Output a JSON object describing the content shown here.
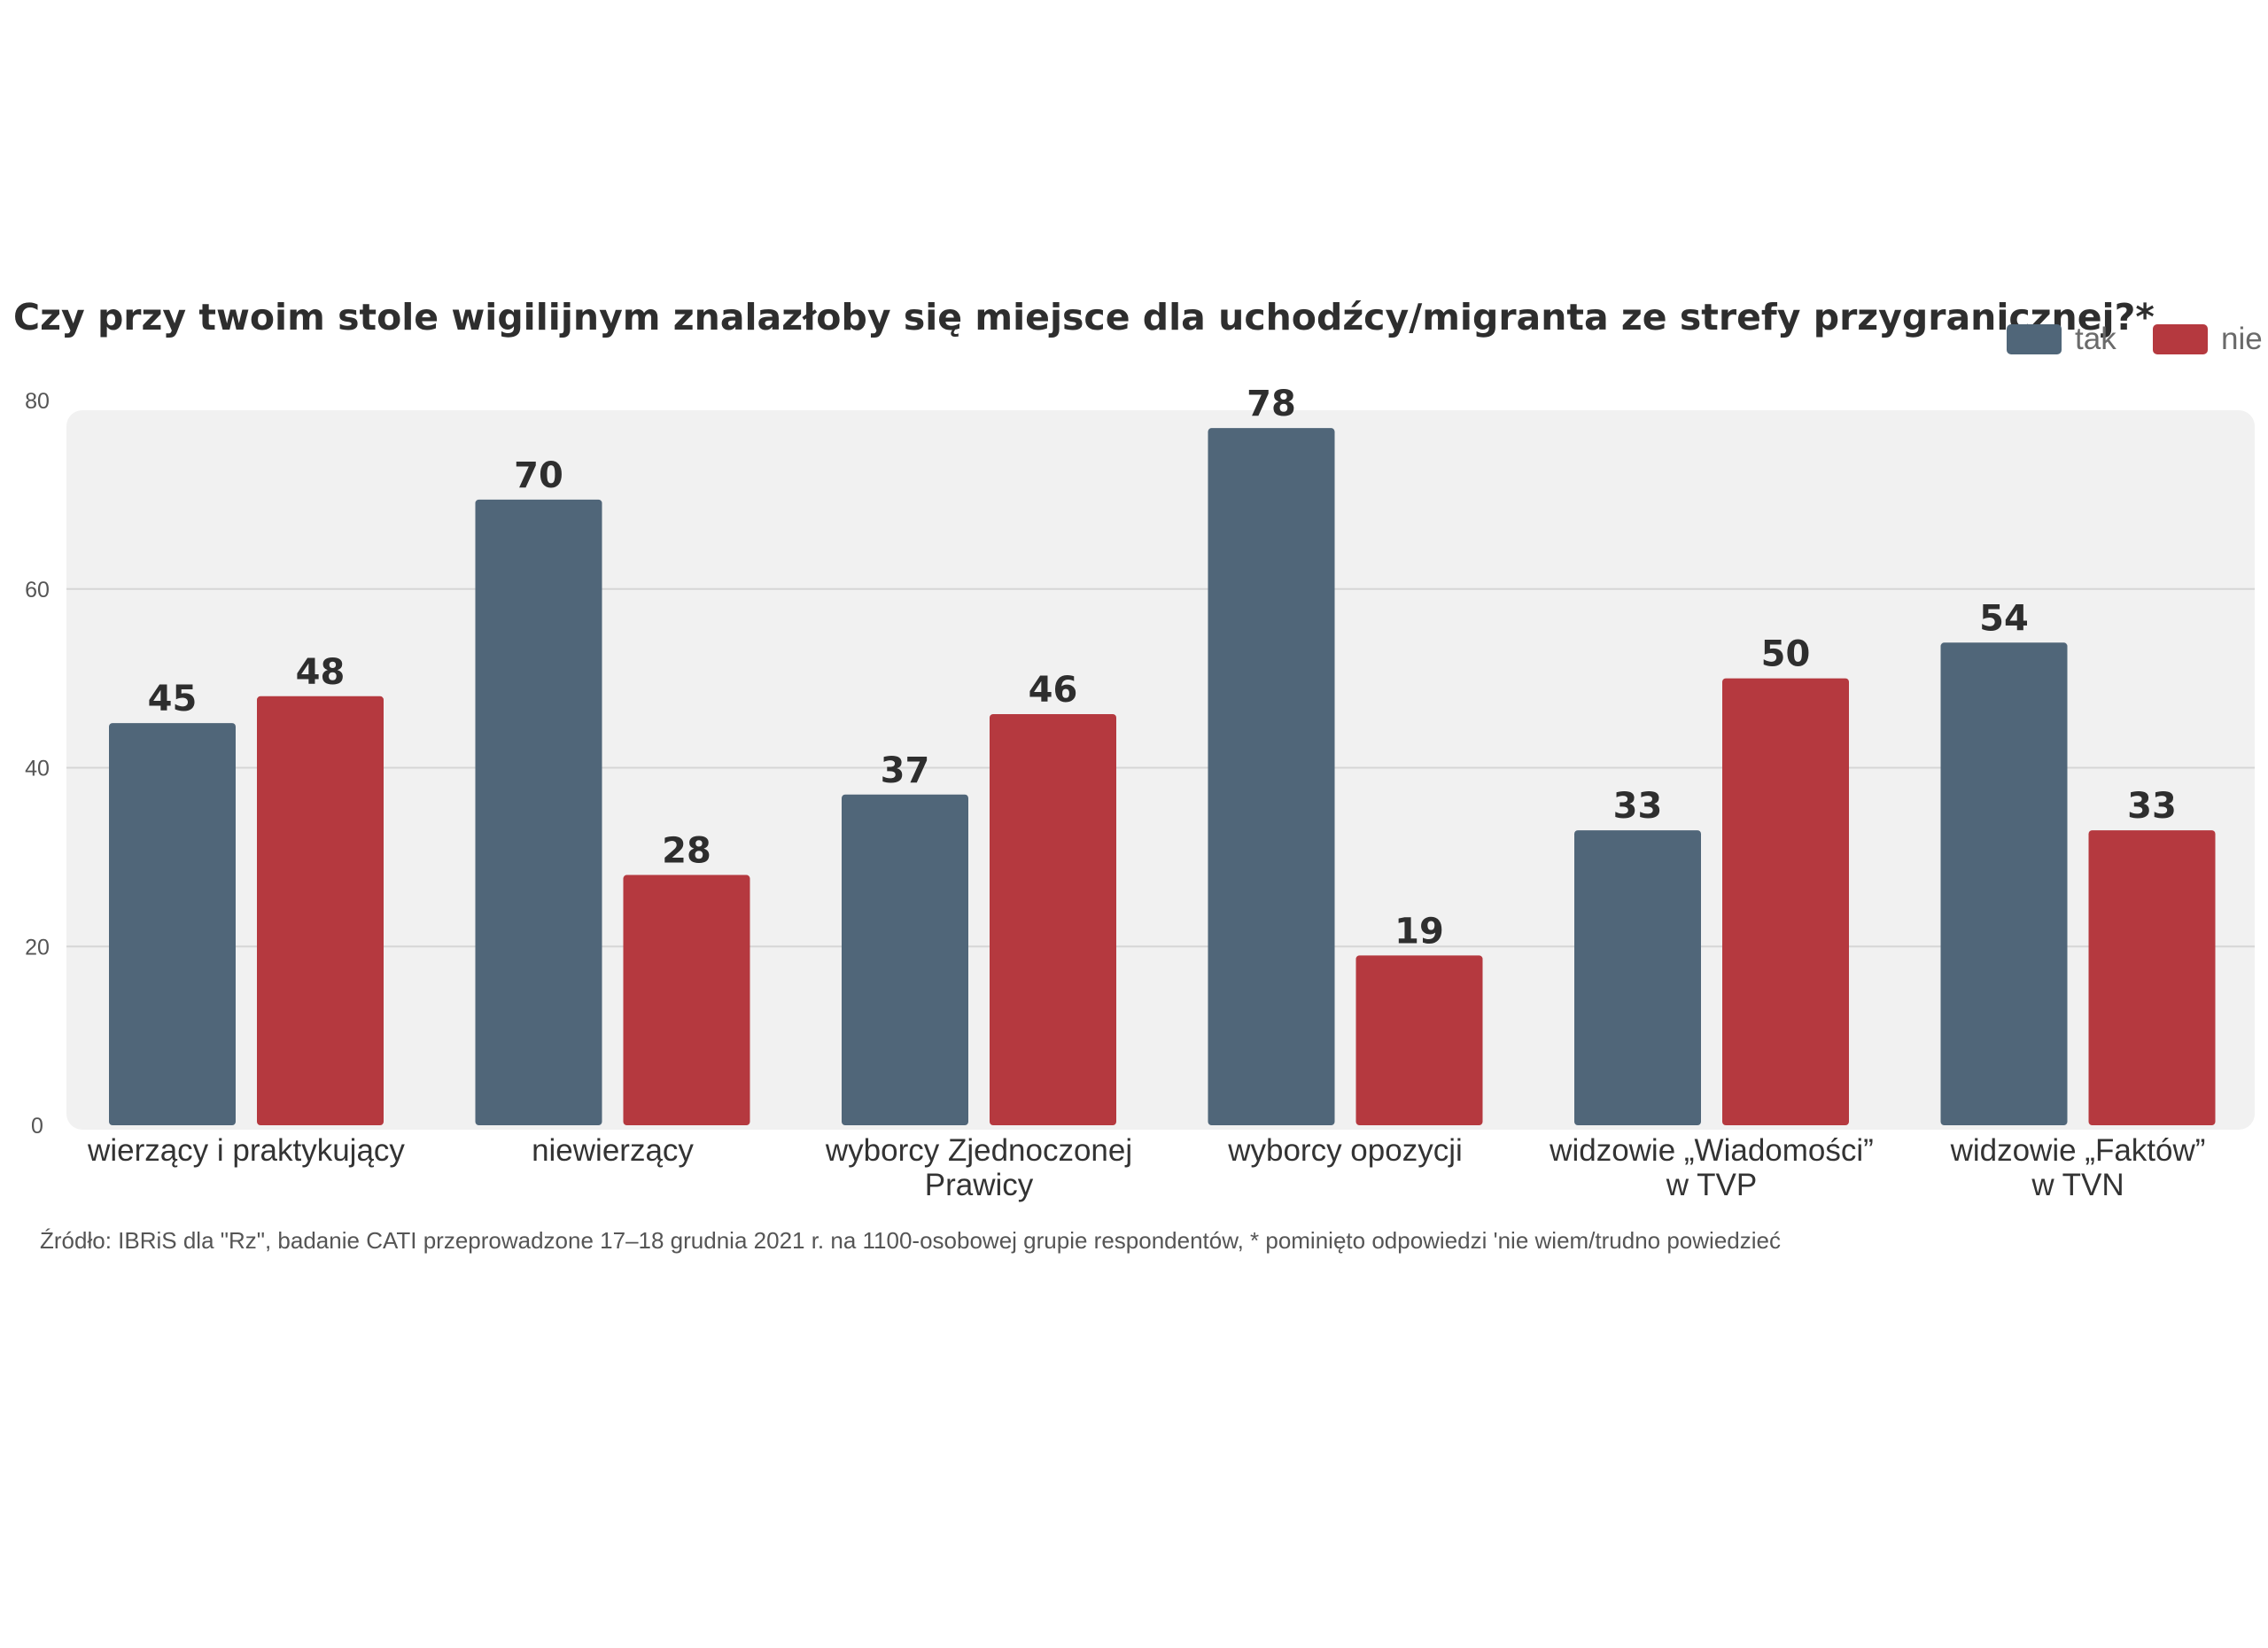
{
  "chart_data": {
    "type": "bar",
    "title": "Czy przy twoim stole wigilijnym znalazłoby się miejsce dla uchodźcy/migranta ze strefy przygranicznej?*",
    "categories": [
      [
        "wierzący i praktykujący"
      ],
      [
        "niewierzący"
      ],
      [
        "wyborcy Zjednoczonej",
        "Prawicy"
      ],
      [
        "wyborcy opozycji"
      ],
      [
        "widzowie „Wiadomości”",
        "w TVP"
      ],
      [
        "widzowie „Faktów”",
        "w TVN"
      ]
    ],
    "series": [
      {
        "name": "tak",
        "color": "#506679",
        "values": [
          45,
          70,
          37,
          78,
          33,
          54
        ]
      },
      {
        "name": "nie",
        "color": "#b5393f",
        "values": [
          48,
          28,
          46,
          19,
          50,
          33
        ]
      }
    ],
    "ylim": [
      0,
      80
    ],
    "yticks": [
      0,
      20,
      40,
      60,
      80
    ],
    "grid": true,
    "legend_position": "top-right",
    "source": "Źródło: IBRiS dla \"Rz\", badanie CATI przeprowadzone 17–18 grudnia 2021 r. na 1100-osobowej grupie respondentów, * pominięto odpowiedzi 'nie wiem/trudno powiedzieć"
  }
}
